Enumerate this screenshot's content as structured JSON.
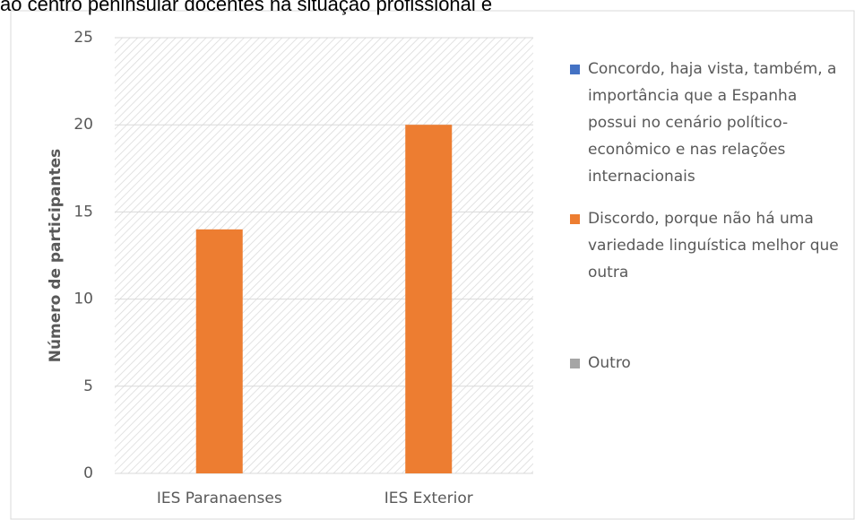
{
  "chart_data": {
    "type": "bar",
    "title": "ão centro peninsular docentes na situação profissional e",
    "y_label": "Número de participantes",
    "categories": [
      "IES Paranaenses",
      "IES Exterior"
    ],
    "series": [
      {
        "name": "Concordo, haja vista, também, a importância que a Espanha possui no cenário político-econômico e nas relações internacionais",
        "color": "#4472c4",
        "values": [
          0,
          0
        ]
      },
      {
        "name": "Discordo, porque não há uma variedade linguística melhor que outra",
        "color": "#ed7d31",
        "values": [
          14,
          20
        ]
      },
      {
        "name": "Outro",
        "color": "#a5a5a5",
        "values": [
          0,
          0
        ]
      }
    ],
    "ylim": [
      0,
      25
    ],
    "yticks": [
      0,
      5,
      10,
      15,
      20,
      25
    ],
    "grid": true,
    "legend": "right"
  }
}
